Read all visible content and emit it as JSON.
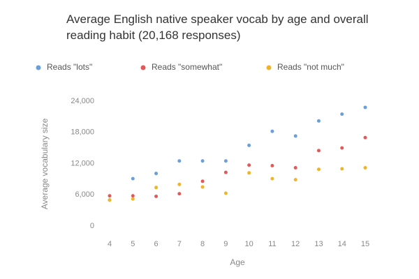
{
  "chart_data": {
    "type": "line",
    "title": "Average English native speaker vocab by age and overall reading habit (20,168 responses)",
    "x_label": "Age",
    "y_label": "Average vocabulary size",
    "x": [
      4,
      5,
      6,
      7,
      8,
      9,
      10,
      11,
      12,
      13,
      14,
      15
    ],
    "xlim": [
      4,
      15
    ],
    "xticks": [
      4,
      5,
      6,
      7,
      8,
      9,
      10,
      11,
      12,
      13,
      14,
      15
    ],
    "ylim": [
      0,
      24000
    ],
    "yticks": [
      0,
      {
        "value": 6000,
        "label": "6,000"
      },
      {
        "value": 12000,
        "label": "12,000"
      },
      {
        "value": 18000,
        "label": "18,000"
      },
      {
        "value": 24000,
        "label": "24,000"
      }
    ],
    "grid": false,
    "series": [
      {
        "name": "Reads \"lots\"",
        "color": "#6a9fd8",
        "values": [
          5000,
          9100,
          10100,
          12500,
          12500,
          12500,
          15500,
          18200,
          17300,
          20200,
          21500,
          22800
        ]
      },
      {
        "name": "Reads \"somewhat\"",
        "color": "#e05a5a",
        "values": [
          5800,
          5800,
          5700,
          6200,
          8600,
          10300,
          11700,
          11600,
          11200,
          14500,
          15000,
          17000
        ]
      },
      {
        "name": "Reads \"not much\"",
        "color": "#f0b429",
        "values": [
          5000,
          5200,
          7400,
          8000,
          7500,
          6300,
          10200,
          9100,
          8900,
          10900,
          11000,
          11200
        ]
      }
    ]
  }
}
